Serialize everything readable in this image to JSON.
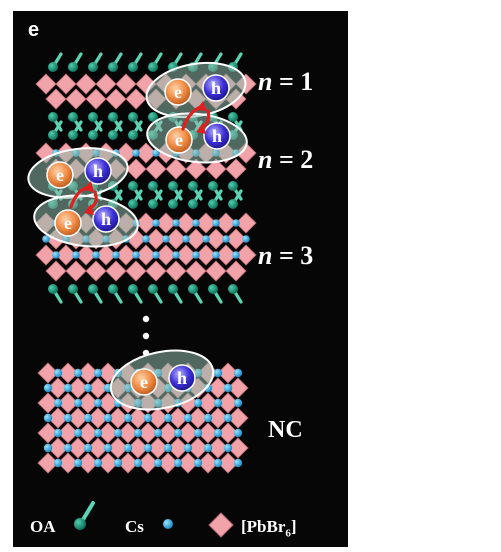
{
  "panel_letter": "e",
  "layer_labels": [
    {
      "prefix": "n",
      "value": " = 1"
    },
    {
      "prefix": "n",
      "value": " = 2"
    },
    {
      "prefix": "n",
      "value": " = 3"
    }
  ],
  "nc_label": "NC",
  "particles": {
    "electron": "e",
    "hole": "h"
  },
  "legend": {
    "oa": "OA",
    "cs": "Cs",
    "pbbr_base": "[PbBr",
    "pbbr_sub": "6",
    "pbbr_end": "]"
  },
  "colors": {
    "background": "#060606",
    "octahedron": "#f2a3a9",
    "octahedron_edge": "#b86a73",
    "oa_ball": "#0e8c72",
    "oa_stick": "#5fd3b6",
    "cs": "#1aa7e6",
    "electron": "#ef8a43",
    "hole": "#3b2fd6",
    "exciton_shell": "#8fb9ac",
    "transfer_arrow": "#e02020"
  }
}
